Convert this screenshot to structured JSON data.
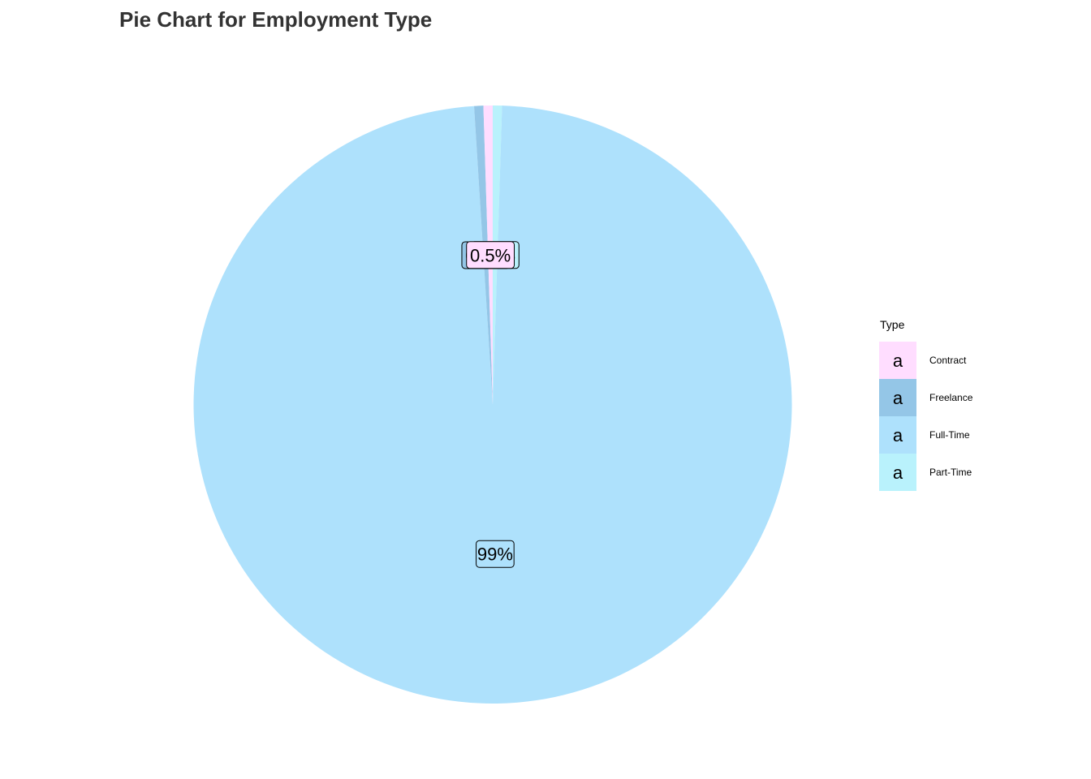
{
  "chart_data": {
    "type": "pie",
    "title": "Pie Chart for Employment Type",
    "legend_title": "Type",
    "legend_position": "right",
    "legend_key_glyph": "a",
    "categories": [
      "Contract",
      "Freelance",
      "Full-Time",
      "Part-Time"
    ],
    "values": [
      0.5,
      0.5,
      99,
      0.5
    ],
    "colors": [
      "#FFDDFF",
      "#94C6E7",
      "#AEE1FC",
      "#B9F2FC"
    ],
    "slice_labels": [
      "0.5%",
      "0.5%",
      "99%",
      "0.5%"
    ]
  }
}
